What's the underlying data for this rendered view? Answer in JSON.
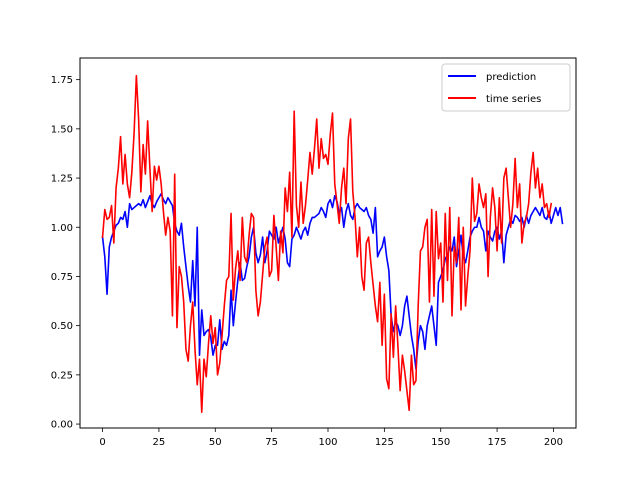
{
  "chart_data": {
    "type": "line",
    "title": "",
    "xlabel": "",
    "ylabel": "",
    "xlim": [
      -10,
      210
    ],
    "ylim": [
      -0.02,
      1.86
    ],
    "xticks": [
      0,
      25,
      50,
      75,
      100,
      125,
      150,
      175,
      200
    ],
    "xtick_labels": [
      "0",
      "25",
      "50",
      "75",
      "100",
      "125",
      "150",
      "175",
      "200"
    ],
    "yticks": [
      0.0,
      0.25,
      0.5,
      0.75,
      1.0,
      1.25,
      1.5,
      1.75
    ],
    "ytick_labels": [
      "0.00",
      "0.25",
      "0.50",
      "0.75",
      "1.00",
      "1.25",
      "1.50",
      "1.75"
    ],
    "grid": false,
    "legend": {
      "placement": "top-right"
    },
    "series": [
      {
        "name": "prediction",
        "color": "#0000ff",
        "x_start": 0,
        "x_step": 1,
        "values": [
          0.95,
          0.85,
          0.66,
          0.9,
          0.95,
          0.98,
          1.01,
          1.02,
          1.05,
          1.04,
          1.08,
          1.0,
          1.12,
          1.09,
          1.1,
          1.11,
          1.12,
          1.11,
          1.14,
          1.1,
          1.13,
          1.16,
          1.12,
          1.1,
          1.13,
          1.15,
          1.17,
          1.14,
          1.12,
          1.15,
          1.13,
          1.11,
          1.02,
          0.98,
          0.96,
          1.02,
          0.9,
          0.8,
          0.7,
          0.62,
          0.83,
          0.6,
          1.0,
          0.35,
          0.58,
          0.45,
          0.47,
          0.48,
          0.44,
          0.35,
          0.4,
          0.4,
          0.53,
          0.38,
          0.42,
          0.4,
          0.45,
          0.68,
          0.5,
          0.62,
          0.73,
          0.82,
          0.73,
          0.74,
          0.8,
          0.85,
          0.95,
          1.0,
          0.87,
          0.82,
          0.86,
          0.95,
          0.82,
          0.88,
          0.98,
          0.96,
          0.94,
          1.0,
          0.92,
          0.96,
          1.0,
          0.94,
          0.82,
          0.8,
          0.94,
          0.96,
          1.0,
          0.97,
          0.94,
          0.98,
          1.0,
          0.96,
          1.02,
          1.05,
          1.05,
          1.06,
          1.07,
          1.1,
          1.08,
          1.05,
          1.12,
          1.14,
          1.1,
          1.16,
          1.13,
          1.07,
          1.1,
          1.0,
          1.08,
          1.12,
          1.06,
          1.04,
          1.1,
          1.12,
          1.1,
          1.09,
          1.08,
          1.1,
          1.06,
          1.04,
          0.97,
          1.1,
          0.85,
          0.88,
          0.9,
          0.95,
          0.85,
          0.78,
          0.55,
          0.47,
          0.52,
          0.5,
          0.45,
          0.5,
          0.6,
          0.65,
          0.55,
          0.45,
          0.38,
          0.28,
          0.42,
          0.5,
          0.47,
          0.38,
          0.5,
          0.55,
          0.6,
          0.5,
          0.4,
          0.72,
          0.75,
          0.78,
          0.84,
          0.86,
          0.9,
          0.88,
          0.95,
          0.8,
          0.88,
          0.96,
          0.85,
          0.82,
          0.88,
          0.95,
          0.98,
          1.0,
          1.0,
          1.05,
          1.0,
          0.98,
          0.88,
          0.98,
          0.95,
          0.93,
          0.98,
          1.0,
          0.94,
          0.98,
          0.82,
          0.96,
          1.0,
          1.04,
          1.02,
          1.06,
          1.05,
          1.03,
          1.05,
          1.0,
          1.06,
          1.02,
          1.06,
          1.08,
          1.1,
          1.08,
          1.06,
          1.1,
          1.05,
          1.04,
          1.08,
          1.02,
          1.06,
          1.1,
          1.06,
          1.1,
          1.02
        ]
      },
      {
        "name": "time series",
        "color": "#ff0000",
        "x_start": 0,
        "x_step": 1,
        "values": [
          0.95,
          1.09,
          1.04,
          1.05,
          1.11,
          0.92,
          1.2,
          1.3,
          1.46,
          1.22,
          1.37,
          1.22,
          1.15,
          1.28,
          1.48,
          1.77,
          1.55,
          1.18,
          1.42,
          1.27,
          1.54,
          1.3,
          1.08,
          1.31,
          1.24,
          1.31,
          1.22,
          1.08,
          0.96,
          1.05,
          0.98,
          0.55,
          1.27,
          0.49,
          0.8,
          0.75,
          0.62,
          0.38,
          0.32,
          0.5,
          0.62,
          0.38,
          0.2,
          0.33,
          0.06,
          0.33,
          0.24,
          0.41,
          0.55,
          0.41,
          0.49,
          0.25,
          0.31,
          0.45,
          0.6,
          0.73,
          0.75,
          1.07,
          0.63,
          0.79,
          0.88,
          0.73,
          1.05,
          0.85,
          0.82,
          0.96,
          1.07,
          1.05,
          0.68,
          0.55,
          0.62,
          0.76,
          0.9,
          0.95,
          0.75,
          0.78,
          1.06,
          0.9,
          0.73,
          0.98,
          0.87,
          1.2,
          1.08,
          1.28,
          0.95,
          1.59,
          1.11,
          1.0,
          1.23,
          1.02,
          1.11,
          1.24,
          1.38,
          1.27,
          1.4,
          1.55,
          1.3,
          1.45,
          1.35,
          1.37,
          1.32,
          1.47,
          1.58,
          1.22,
          1.12,
          1.02,
          1.2,
          1.3,
          1.12,
          1.45,
          1.55,
          1.18,
          1.05,
          0.85,
          1.0,
          0.75,
          0.68,
          0.92,
          0.95,
          0.82,
          0.71,
          0.6,
          0.52,
          0.72,
          0.4,
          0.66,
          0.23,
          0.18,
          0.56,
          0.34,
          0.6,
          0.4,
          0.17,
          0.35,
          0.27,
          0.17,
          0.07,
          0.35,
          0.2,
          0.22,
          0.6,
          0.88,
          0.9,
          1.0,
          1.04,
          0.62,
          1.09,
          0.65,
          1.08,
          0.84,
          0.92,
          0.62,
          1.07,
          0.73,
          1.1,
          0.55,
          0.9,
          0.82,
          1.05,
          0.58,
          1.0,
          0.6,
          0.75,
          0.88,
          1.25,
          1.03,
          1.07,
          1.22,
          1.15,
          1.1,
          1.17,
          0.75,
          1.05,
          1.2,
          1.1,
          0.88,
          1.15,
          0.92,
          1.25,
          1.3,
          1.15,
          1.0,
          1.12,
          1.35,
          1.1,
          1.22,
          0.92,
          1.02,
          1.05,
          1.12,
          1.28,
          1.38,
          1.2,
          1.3,
          1.15,
          1.22,
          1.1,
          1.12,
          1.05,
          1.12
        ]
      }
    ]
  }
}
